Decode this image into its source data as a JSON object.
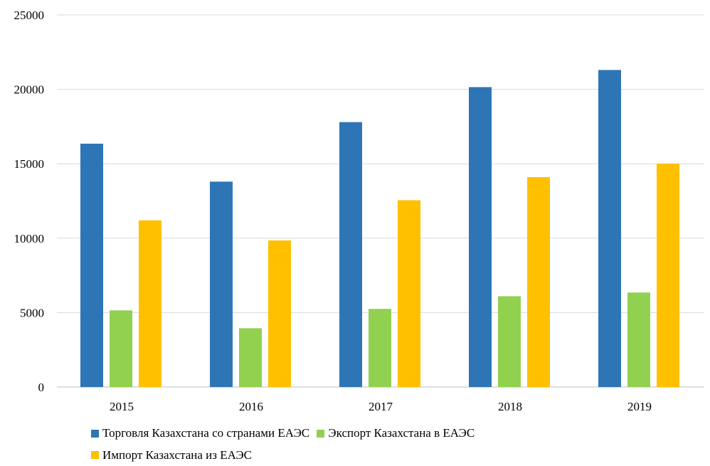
{
  "chart_data": {
    "type": "bar",
    "title": "",
    "xlabel": "",
    "ylabel": "",
    "categories": [
      "2015",
      "2016",
      "2017",
      "2018",
      "2019"
    ],
    "ylim": [
      0,
      25000
    ],
    "yticks": [
      "0",
      "5000",
      "10000",
      "15000",
      "20000",
      "25000"
    ],
    "grid": true,
    "legend_position": "bottom",
    "series": [
      {
        "name": "Торговля Казахстана со странами ЕАЭС",
        "color": "#2E75B6",
        "values": [
          16350,
          13800,
          17800,
          20150,
          21300
        ]
      },
      {
        "name": "Экспорт Казахстана в ЕАЭС",
        "color": "#92D050",
        "values": [
          5150,
          3950,
          5250,
          6100,
          6350
        ]
      },
      {
        "name": "Импорт Казахстана из ЕАЭС",
        "color": "#FFC000",
        "values": [
          11200,
          9850,
          12550,
          14100,
          15000
        ]
      }
    ]
  }
}
